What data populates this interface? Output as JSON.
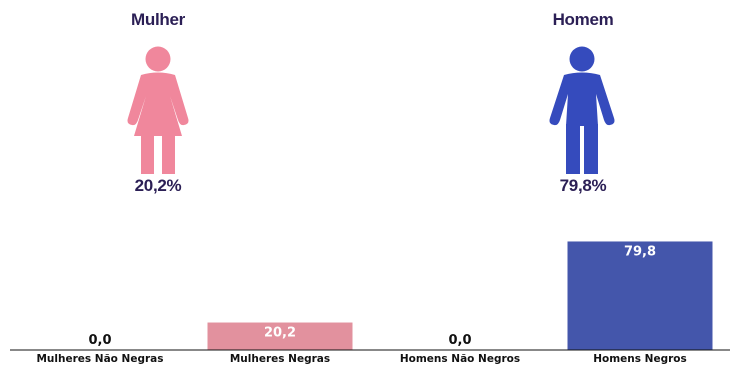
{
  "female": {
    "title": "Mulher",
    "percent_label": "20,2%",
    "color": "#f0879c"
  },
  "male": {
    "title": "Homem",
    "percent_label": "79,8%",
    "color": "#354bbd"
  },
  "chart_data": {
    "type": "bar",
    "categories": [
      "Mulheres Não Negras",
      "Mulheres Negras",
      "Homens Não Negros",
      "Homens Negros"
    ],
    "values": [
      0.0,
      20.2,
      0.0,
      79.8
    ],
    "value_labels": [
      "0,0",
      "20,2",
      "0,0",
      "79,8"
    ],
    "colors": [
      "#e2919e",
      "#e2919e",
      "#4456ab",
      "#4456ab"
    ],
    "title": "",
    "xlabel": "",
    "ylabel": "",
    "ylim": [
      0,
      100
    ],
    "grid": false,
    "legend": "none"
  }
}
